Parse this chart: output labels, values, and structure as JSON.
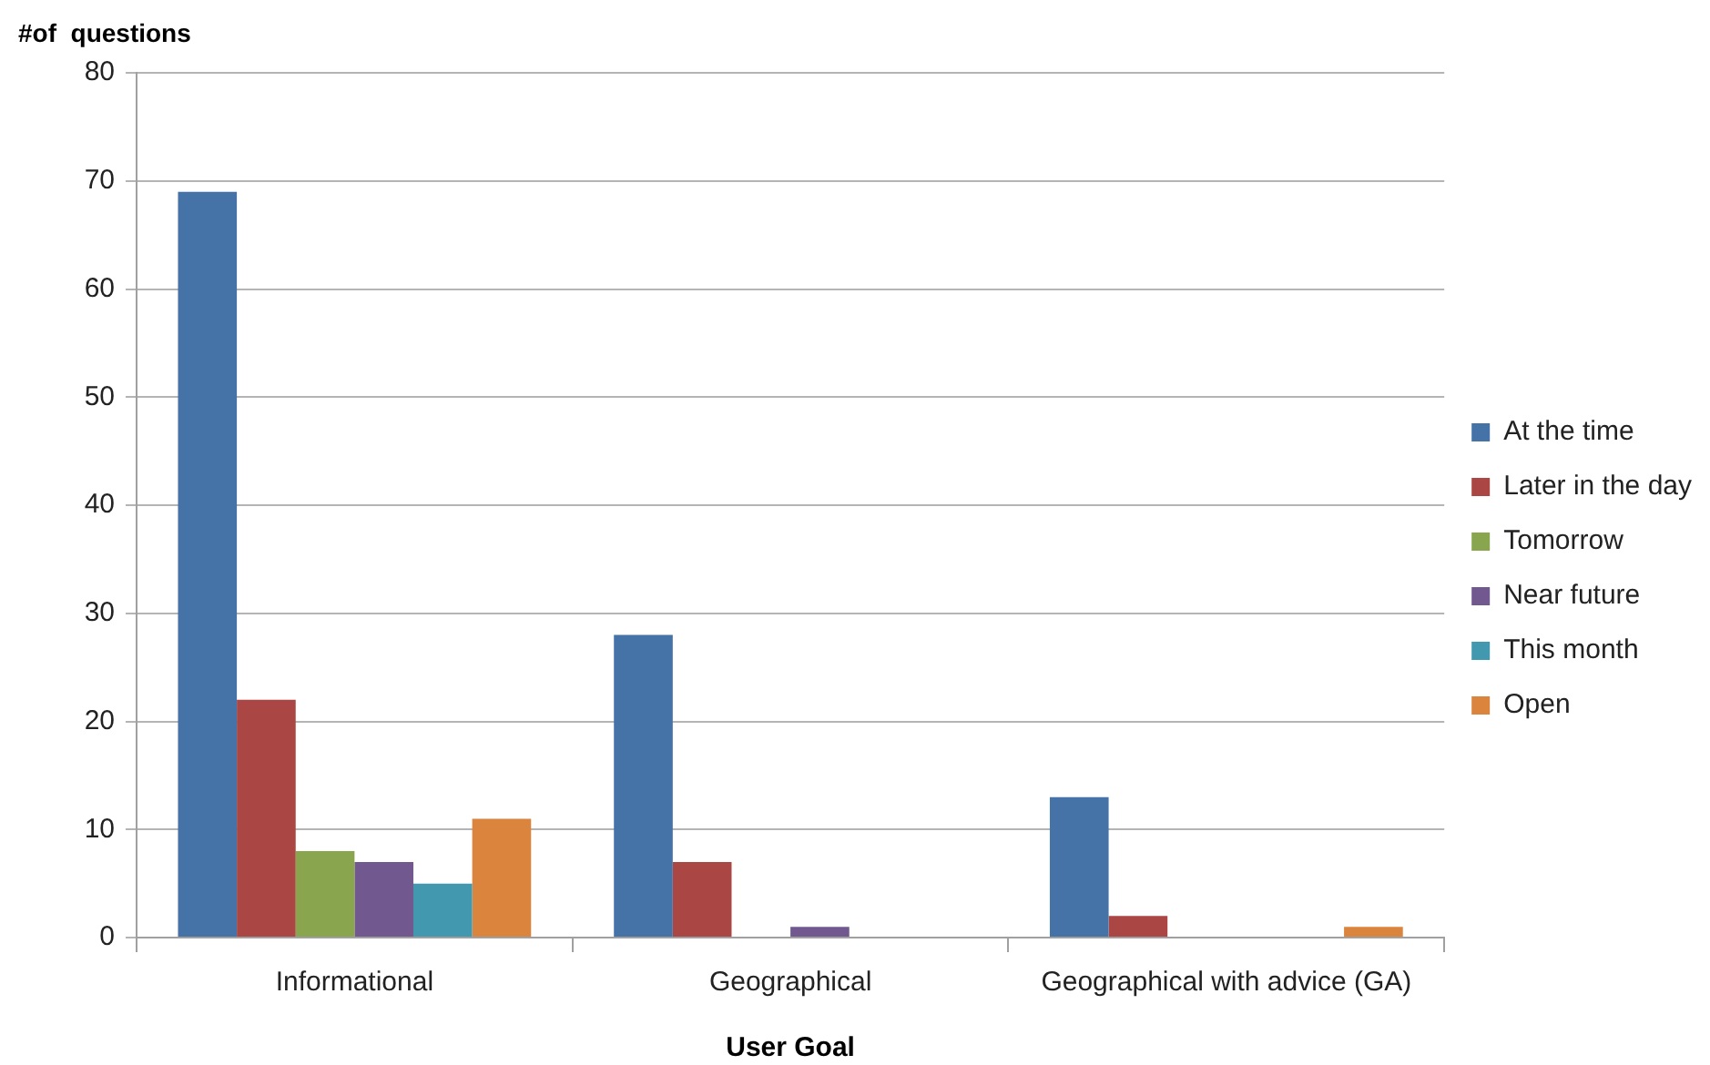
{
  "chart_data": {
    "type": "bar",
    "ylabel": "#of  questions",
    "xlabel": "User Goal",
    "categories": [
      "Informational",
      "Geographical",
      "Geographical with advice (GA)"
    ],
    "series": [
      {
        "name": "At the time",
        "color": "#4572a7",
        "values": [
          69,
          28,
          13
        ]
      },
      {
        "name": "Later in the day",
        "color": "#aa4643",
        "values": [
          22,
          7,
          2
        ]
      },
      {
        "name": "Tomorrow",
        "color": "#89a54e",
        "values": [
          8,
          0,
          0
        ]
      },
      {
        "name": "Near future",
        "color": "#71588f",
        "values": [
          7,
          1,
          0
        ]
      },
      {
        "name": "This month",
        "color": "#4198af",
        "values": [
          5,
          0,
          0
        ]
      },
      {
        "name": "Open",
        "color": "#db843d",
        "values": [
          11,
          0,
          1
        ]
      }
    ],
    "ylim": [
      0,
      80
    ],
    "yticks": [
      0,
      10,
      20,
      30,
      40,
      50,
      60,
      70,
      80
    ],
    "grid": "y",
    "legend": "right"
  }
}
